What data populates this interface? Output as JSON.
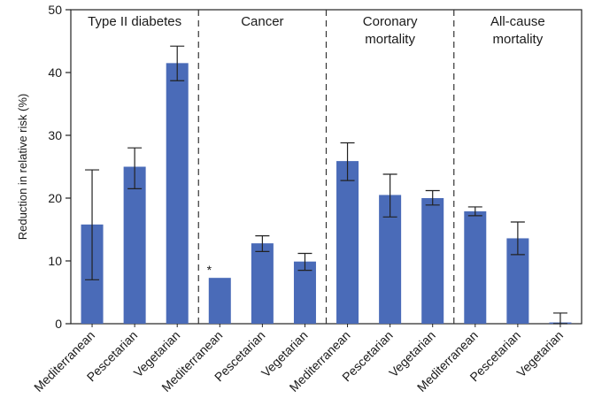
{
  "chart_data": {
    "type": "bar",
    "ylabel": "Reduction in relative risk (%)",
    "ylim": [
      0,
      50
    ],
    "yticks": [
      "0",
      "10",
      "20",
      "30",
      "40",
      "50"
    ],
    "grid": false,
    "bar_color": "#4a6bb8",
    "groups": [
      {
        "title_lines": [
          "Type II diabetes"
        ],
        "categories": [
          "Mediterranean",
          "Pescetarian",
          "Vegetarian"
        ],
        "values": [
          15.8,
          25.0,
          41.5
        ],
        "error_low": [
          7.0,
          21.5,
          38.7
        ],
        "error_high": [
          24.5,
          28.0,
          44.2
        ],
        "annotations": [
          "",
          "",
          ""
        ]
      },
      {
        "title_lines": [
          "Cancer"
        ],
        "categories": [
          "Mediterranean",
          "Pescetarian",
          "Vegetarian"
        ],
        "values": [
          7.3,
          12.8,
          9.9
        ],
        "error_low": [
          null,
          11.5,
          8.5
        ],
        "error_high": [
          null,
          14.0,
          11.2
        ],
        "annotations": [
          "*",
          "",
          ""
        ]
      },
      {
        "title_lines": [
          "Coronary",
          "mortality"
        ],
        "categories": [
          "Mediterranean",
          "Pescetarian",
          "Vegetarian"
        ],
        "values": [
          25.9,
          20.5,
          20.0
        ],
        "error_low": [
          22.8,
          17.0,
          18.9
        ],
        "error_high": [
          28.8,
          23.8,
          21.2
        ],
        "annotations": [
          "",
          "",
          ""
        ]
      },
      {
        "title_lines": [
          "All-cause",
          "mortality"
        ],
        "categories": [
          "Mediterranean",
          "Pescetarian",
          "Vegetarian"
        ],
        "values": [
          17.9,
          13.6,
          0.2
        ],
        "error_low": [
          17.2,
          11.0,
          0.0
        ],
        "error_high": [
          18.6,
          16.2,
          1.7
        ],
        "annotations": [
          "",
          "",
          ""
        ]
      }
    ]
  }
}
